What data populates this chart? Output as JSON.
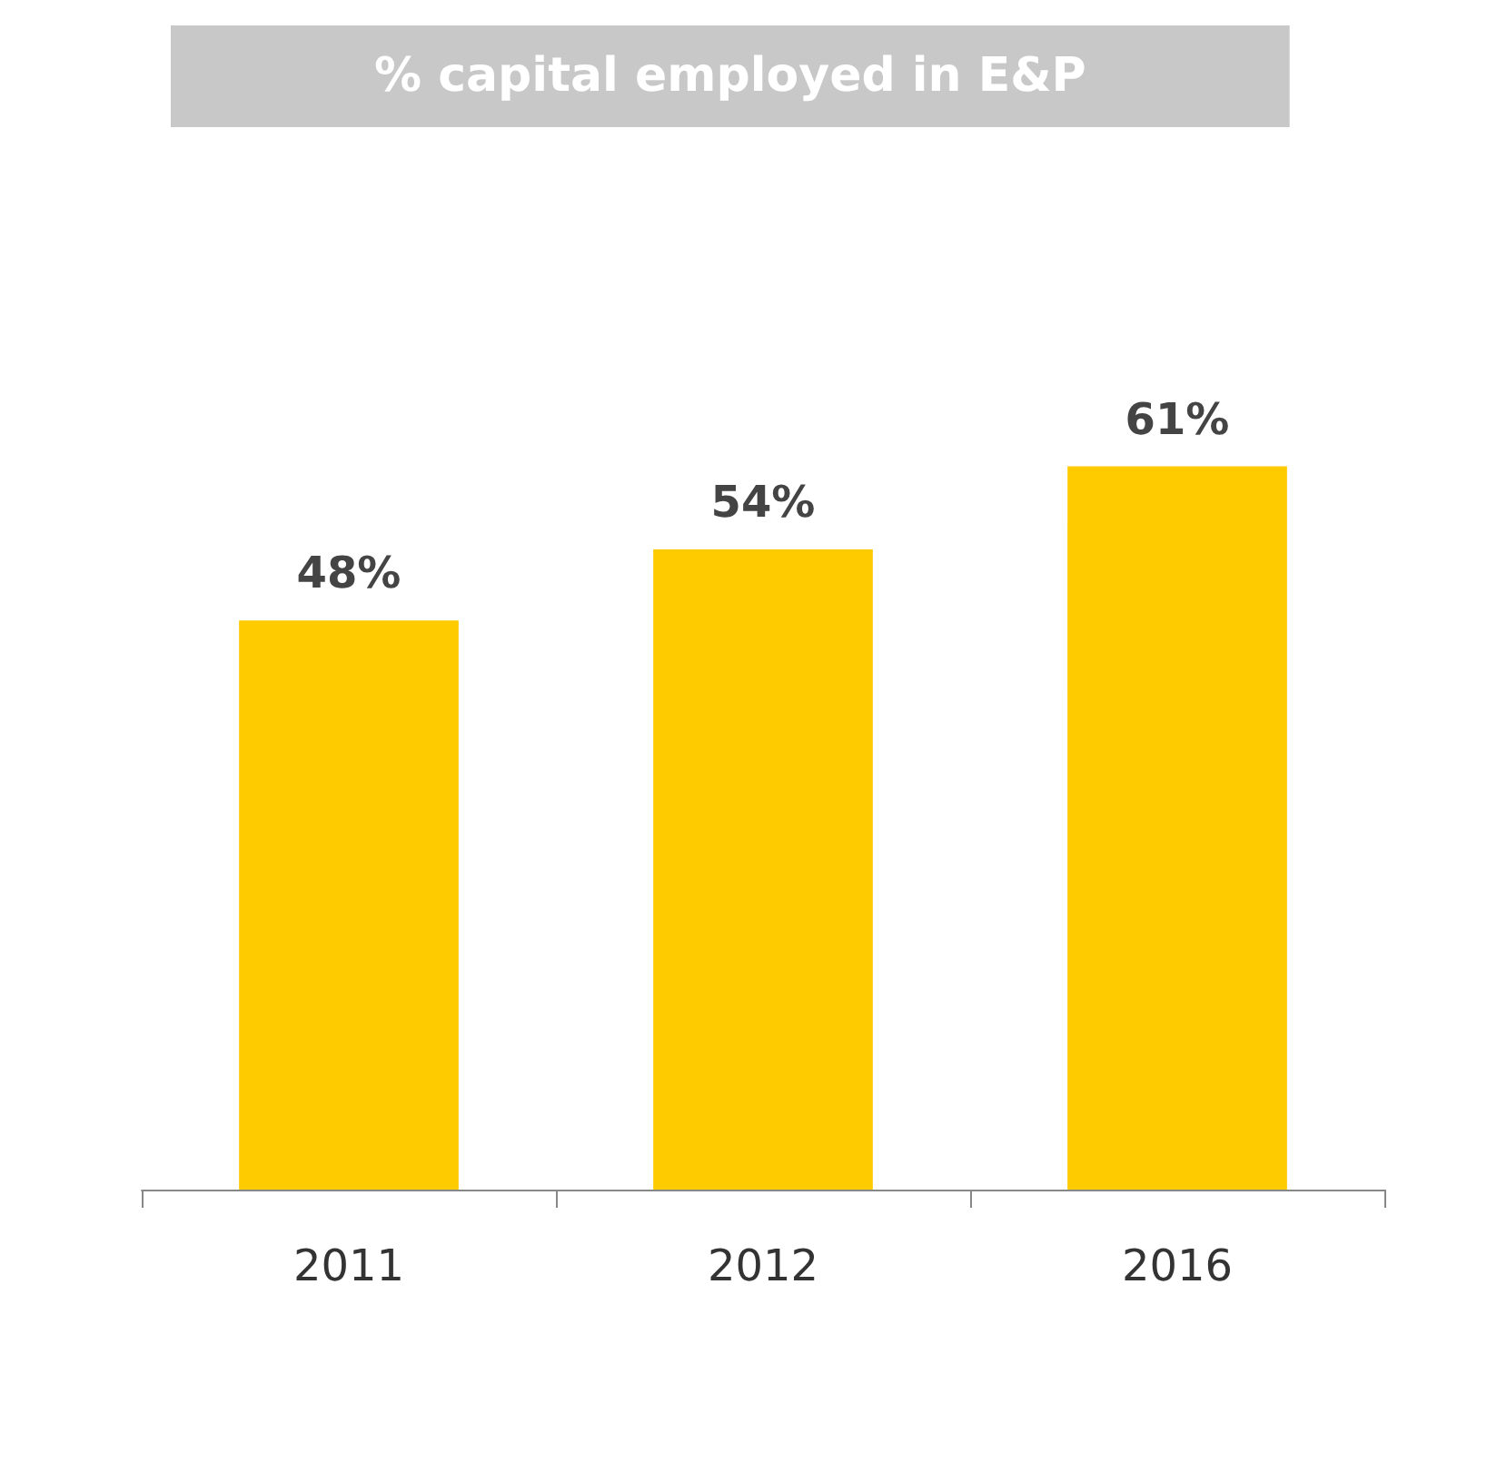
{
  "chart_data": {
    "type": "bar",
    "title": "% capital employed in E&P",
    "categories": [
      "2011",
      "2012",
      "2016"
    ],
    "values": [
      48,
      54,
      61
    ],
    "value_labels": [
      "48%",
      "54%",
      "61%"
    ],
    "color": "#fecb00"
  }
}
